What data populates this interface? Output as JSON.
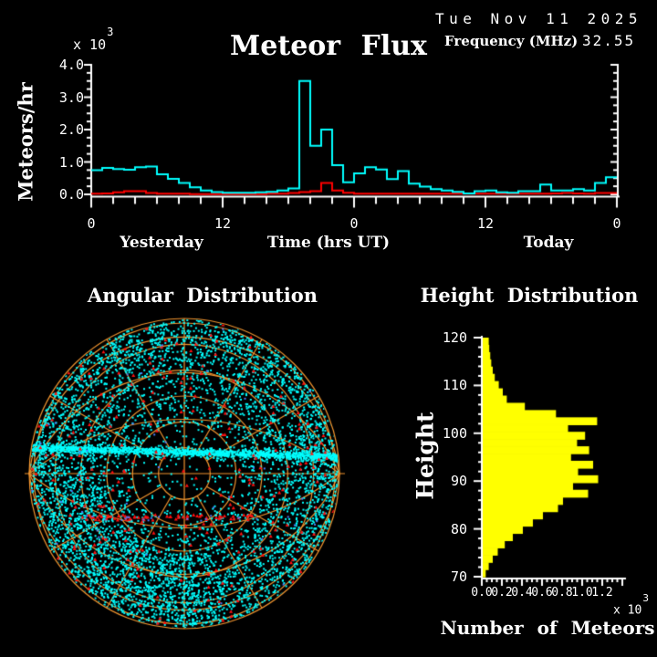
{
  "header": {
    "date": "Tue Nov 11 2025",
    "title": "Meteor Flux",
    "frequency_label": "Frequency (MHz)",
    "frequency_value": "32.55"
  },
  "flux": {
    "ylabel": "Meteors/hr",
    "scale_base": "x 10",
    "scale_exp": "3",
    "left_section_label": "Yesterday",
    "x_axis_label": "Time (hrs UT)",
    "right_section_label": "Today",
    "yticks": [
      "0.0",
      "1.0",
      "2.0",
      "3.0",
      "4.0"
    ],
    "xticks": [
      "0",
      "12",
      "0",
      "12",
      "0"
    ]
  },
  "angular": {
    "title": "Angular Distribution"
  },
  "height": {
    "title": "Height Distribution",
    "ylabel": "Height",
    "xlabel": "Number of Meteors",
    "scale_base": "x 10",
    "scale_exp": "3",
    "yticks": [
      "120",
      "110",
      "100",
      "90",
      "80",
      "70"
    ],
    "xticks": [
      "0.0",
      "0.2",
      "0.4",
      "0.6",
      "0.8",
      "1.0",
      "1.2"
    ]
  },
  "colors": {
    "background": "#000000",
    "text": "#FFFFFF",
    "axis": "#FFFFFF",
    "flux_all_meteors": "#00FFFF",
    "flux_overdense": "#FF0000",
    "histogram_fill": "#FFFF00",
    "polar_grid": "#F0942F",
    "scatter_main": "#00FFFF",
    "scatter_red": "#FF1010",
    "scatter_blue": "#4D7DFF"
  },
  "chart_data": [
    {
      "id": "flux",
      "type": "line",
      "title": "Meteor Flux",
      "xlabel": "Time (hrs UT)",
      "ylabel": "Meteors/hr (x 10^3)",
      "x_hours_total": 48,
      "x_sections": [
        "Yesterday",
        "Today"
      ],
      "ylim": [
        0.0,
        4.0
      ],
      "ytick_values": [
        0.0,
        1.0,
        2.0,
        3.0,
        4.0
      ],
      "xtick_hours": [
        0,
        12,
        24,
        36,
        48
      ],
      "xtick_labels": [
        "0",
        "12",
        "0",
        "12",
        "0"
      ],
      "grid": false,
      "series": [
        {
          "name": "all-meteors",
          "color": "#00FFFF",
          "values": [
            0.75,
            0.82,
            0.78,
            0.76,
            0.84,
            0.86,
            0.62,
            0.48,
            0.35,
            0.22,
            0.12,
            0.07,
            0.05,
            0.05,
            0.05,
            0.06,
            0.08,
            0.12,
            0.18,
            3.5,
            1.5,
            2.0,
            0.9,
            0.37,
            0.65,
            0.84,
            0.77,
            0.47,
            0.72,
            0.33,
            0.24,
            0.16,
            0.12,
            0.08,
            0.03,
            0.1,
            0.12,
            0.06,
            0.05,
            0.1,
            0.1,
            0.3,
            0.12,
            0.12,
            0.16,
            0.12,
            0.35,
            0.53
          ]
        },
        {
          "name": "overdense-meteors",
          "color": "#FF0000",
          "values": [
            0.02,
            0.03,
            0.06,
            0.1,
            0.1,
            0.04,
            0.02,
            0.02,
            0.02,
            0.01,
            0.01,
            0.01,
            0.01,
            0.01,
            0.01,
            0.01,
            0.02,
            0.02,
            0.04,
            0.07,
            0.1,
            0.35,
            0.12,
            0.05,
            0.02,
            0.02,
            0.02,
            0.02,
            0.02,
            0.02,
            0.02,
            0.02,
            0.02,
            0.02,
            0.02,
            0.02,
            0.02,
            0.02,
            0.02,
            0.02,
            0.02,
            0.02,
            0.03,
            0.04,
            0.03,
            0.02,
            0.04,
            0.04
          ]
        }
      ]
    },
    {
      "id": "angular",
      "type": "scatter",
      "title": "Angular Distribution",
      "projection": "azimuthal sky map, elevation rings every 15 deg, azimuth spokes every 30 deg",
      "seed": 20251111,
      "point_counts": {
        "cyan_uniform": 5000,
        "cyan_band_core": 620,
        "cyan_band_fuzz": 750,
        "cyan_outer_ring": 800,
        "cyan_lower_arc": 700,
        "red": 240,
        "red_line": 60,
        "blue": 40,
        "blue_line": 16
      },
      "band_y_offset": -24,
      "red_line_y_offset": 48
    },
    {
      "id": "height",
      "type": "bar",
      "title": "Height Distribution",
      "xlabel": "Number of Meteors (x 10^3)",
      "ylabel": "Height",
      "orientation": "horizontal",
      "height_top": 120,
      "height_bottom": 70,
      "xlim": [
        0.0,
        1.4
      ],
      "xtick_values": [
        0.0,
        0.2,
        0.4,
        0.6,
        0.8,
        1.0,
        1.2
      ],
      "ytick_values": [
        120,
        110,
        100,
        90,
        80,
        70
      ],
      "values": [
        0.06,
        0.065,
        0.075,
        0.085,
        0.1,
        0.12,
        0.16,
        0.2,
        0.24,
        0.42,
        0.73,
        1.14,
        0.85,
        1.02,
        0.94,
        1.06,
        0.88,
        1.1,
        0.95,
        1.15,
        0.9,
        1.05,
        0.8,
        0.75,
        0.6,
        0.5,
        0.4,
        0.3,
        0.22,
        0.15,
        0.1,
        0.06,
        0.03
      ]
    }
  ]
}
